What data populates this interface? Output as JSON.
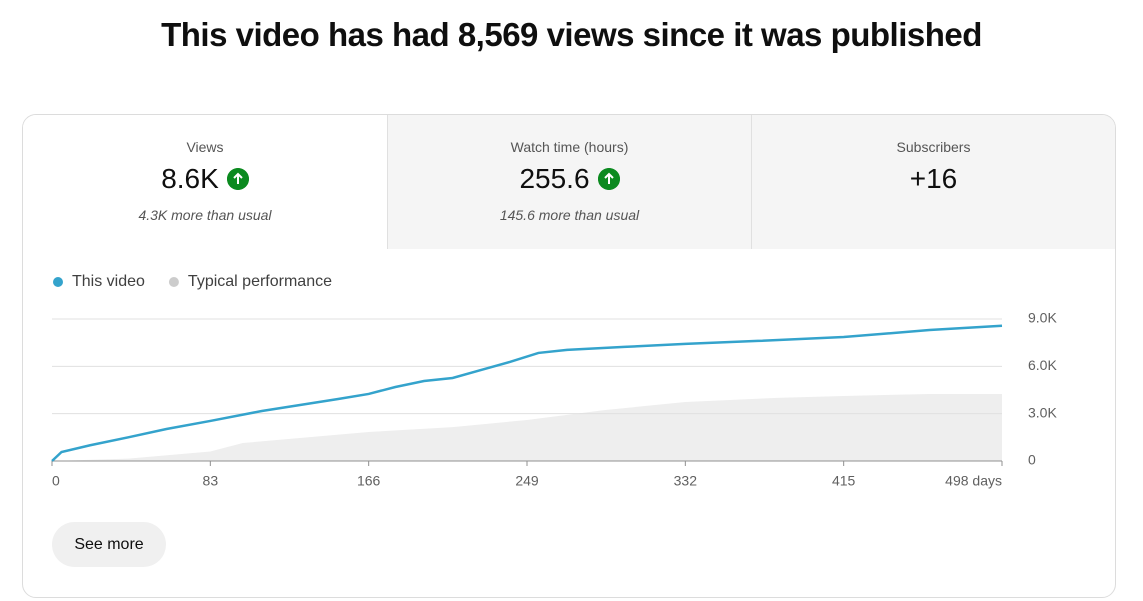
{
  "header": {
    "title": "This video has had 8,569 views since it was published"
  },
  "metrics": [
    {
      "label": "Views",
      "value": "8.6K",
      "note": "4.3K more than usual"
    },
    {
      "label": "Watch time (hours)",
      "value": "255.6",
      "note": "145.6 more than usual"
    },
    {
      "label": "Subscribers",
      "value": "+16"
    }
  ],
  "chart_data": {
    "type": "line",
    "series": [
      {
        "name": "This video",
        "color": "#34a3cc",
        "kind": "line",
        "x": [
          0,
          5,
          20,
          40,
          60,
          83,
          110,
          130,
          150,
          166,
          180,
          195,
          210,
          225,
          240,
          255,
          270,
          300,
          332,
          370,
          415,
          460,
          498
        ],
        "values": [
          0,
          570,
          1000,
          1500,
          2030,
          2540,
          3170,
          3550,
          3930,
          4250,
          4690,
          5070,
          5260,
          5770,
          6280,
          6850,
          7040,
          7230,
          7420,
          7610,
          7860,
          8300,
          8569
        ]
      },
      {
        "name": "Typical performance",
        "color": "#eeeeee",
        "kind": "area",
        "x": [
          0,
          40,
          83,
          100,
          166,
          210,
          249,
          290,
          332,
          380,
          415,
          460,
          498
        ],
        "values": [
          0,
          150,
          600,
          1140,
          1840,
          2150,
          2600,
          3230,
          3740,
          4000,
          4120,
          4250,
          4250
        ]
      }
    ],
    "xlim": [
      0,
      498
    ],
    "xticks": [
      0,
      83,
      166,
      249,
      332,
      415,
      {
        "value": 498,
        "label": "498 days"
      }
    ],
    "ylim": [
      0,
      9000
    ],
    "yticks": [
      0,
      {
        "value": 3000,
        "label": "3.0K"
      },
      {
        "value": 6000,
        "label": "6.0K"
      },
      {
        "value": 9000,
        "label": "9.0K"
      }
    ],
    "grid": true
  },
  "button": "See more"
}
